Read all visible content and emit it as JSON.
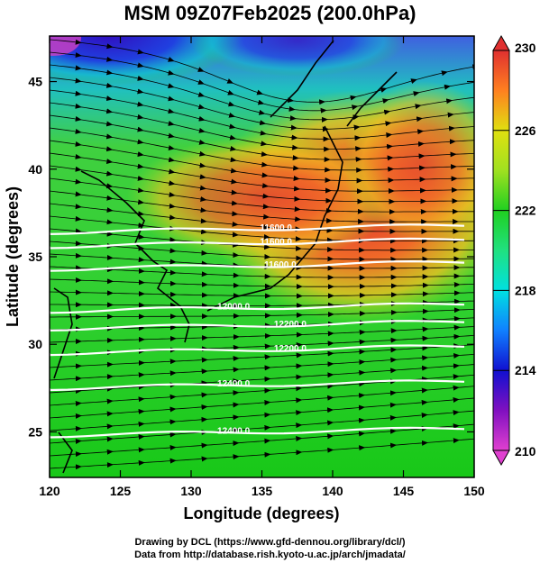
{
  "title": "MSM 09Z07Feb2025 (200.0hPa)",
  "credits": {
    "line1": "Drawing by DCL (https://www.gfd-dennou.org/library/dcl/)",
    "line2": "Data from http://database.rish.kyoto-u.ac.jp/arch/jmadata/"
  },
  "colors": {
    "ocean_land_low": "#18d018",
    "high": "#e03a2a",
    "stream": "#000000",
    "contour": "#ffffff"
  },
  "chart_data": {
    "type": "heatmap",
    "title": "MSM 09Z07Feb2025 (200.0hPa)",
    "xlabel": "Longitude (degrees)",
    "ylabel": "Latitude  (degrees)",
    "xlim": [
      120,
      150
    ],
    "ylim": [
      22.4,
      47.6
    ],
    "xticks": [
      120,
      125,
      130,
      135,
      140,
      145,
      150
    ],
    "xtick_labels": [
      "120",
      "125",
      "130",
      "135",
      "140",
      "145",
      "150"
    ],
    "yticks": [
      25,
      30,
      35,
      40,
      45
    ],
    "ytick_labels": [
      "25",
      "30",
      "35",
      "40",
      "45"
    ],
    "colorbar": {
      "min": 210,
      "max": 230,
      "labels": [
        "230",
        "226",
        "222",
        "218",
        "214",
        "210"
      ],
      "label_values": [
        230,
        226,
        222,
        218,
        214,
        210
      ],
      "stops": [
        {
          "value": 210,
          "color": "#e040d0"
        },
        {
          "value": 212,
          "color": "#8010c0"
        },
        {
          "value": 214,
          "color": "#1010d0"
        },
        {
          "value": 216,
          "color": "#1080ff"
        },
        {
          "value": 218,
          "color": "#00e0e0"
        },
        {
          "value": 220,
          "color": "#20e080"
        },
        {
          "value": 222,
          "color": "#20d020"
        },
        {
          "value": 224,
          "color": "#a0e020"
        },
        {
          "value": 226,
          "color": "#e0e010"
        },
        {
          "value": 228,
          "color": "#ff8020"
        },
        {
          "value": 230,
          "color": "#e03030"
        }
      ]
    },
    "contour_labels": [
      {
        "text": "11600.0",
        "lon": 136.0,
        "lat": 36.7
      },
      {
        "text": "11600.0",
        "lon": 136.0,
        "lat": 35.9
      },
      {
        "text": "11600.0",
        "lon": 136.3,
        "lat": 34.6
      },
      {
        "text": "12000.0",
        "lon": 133.0,
        "lat": 32.2
      },
      {
        "text": "12200.0",
        "lon": 137.0,
        "lat": 31.2
      },
      {
        "text": "12200.0",
        "lon": 137.0,
        "lat": 29.8
      },
      {
        "text": "12400.0",
        "lon": 133.0,
        "lat": 27.8
      },
      {
        "text": "12400.0",
        "lon": 133.0,
        "lat": 25.1
      }
    ]
  }
}
